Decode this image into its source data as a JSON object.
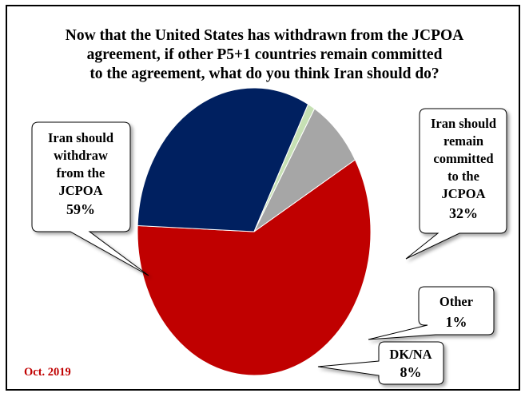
{
  "chart_data": {
    "type": "pie",
    "title_lines": [
      "Now that the United States has withdrawn from the JCPOA",
      "agreement, if other P5+1 countries remain committed",
      "to the agreement, what do you think Iran should do?"
    ],
    "slices": [
      {
        "label_lines": [
          "Iran should",
          "withdraw",
          "from the",
          "JCPOA"
        ],
        "value_label": "59%",
        "value": 59,
        "color": "#C00000"
      },
      {
        "label_lines": [
          "Iran should",
          "remain",
          "committed",
          "to the",
          "JCPOA"
        ],
        "value_label": "32%",
        "value": 32,
        "color": "#002060"
      },
      {
        "label_lines": [
          "Other"
        ],
        "value_label": "1%",
        "value": 1,
        "color": "#C6E0B4"
      },
      {
        "label_lines": [
          "DK/NA"
        ],
        "value_label": "8%",
        "value": 8,
        "color": "#A6A6A6"
      }
    ],
    "footnote": "Oct. 2019",
    "footnote_color": "#C00000"
  }
}
